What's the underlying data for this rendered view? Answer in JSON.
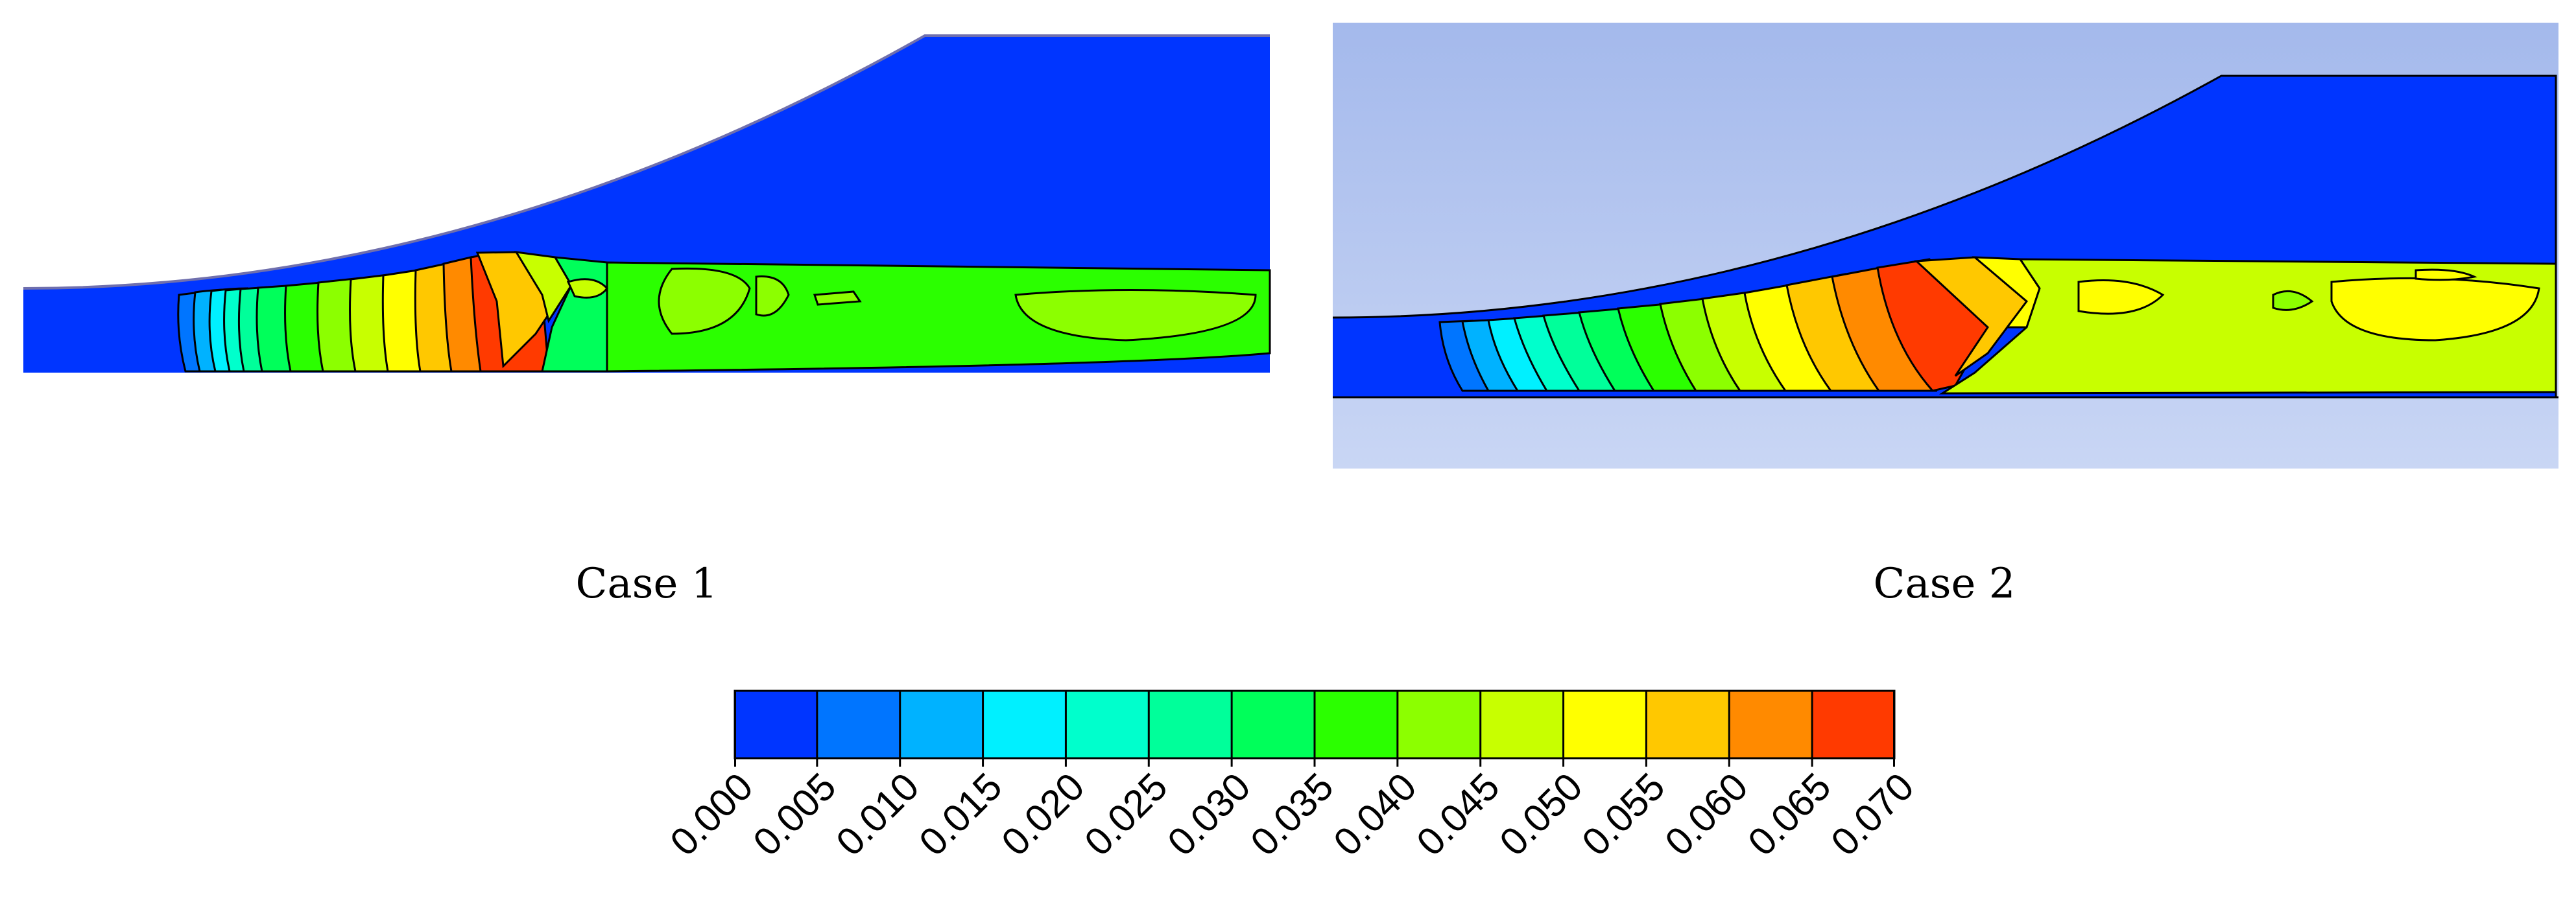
{
  "panels": [
    {
      "label": "Case 1"
    },
    {
      "label": "Case 2"
    }
  ],
  "colorbar": {
    "levels": [
      "0.000",
      "0.005",
      "0.010",
      "0.015",
      "0.020",
      "0.025",
      "0.030",
      "0.035",
      "0.040",
      "0.045",
      "0.050",
      "0.055",
      "0.060",
      "0.065",
      "0.070"
    ],
    "colors": [
      "#0035ff",
      "#0075ff",
      "#00b2ff",
      "#00f0ff",
      "#00ffcc",
      "#00ff9a",
      "#00ff5a",
      "#2bff00",
      "#8cff00",
      "#c8ff00",
      "#ffff00",
      "#ffc800",
      "#ff8a00",
      "#ff3a00"
    ]
  },
  "colors": {
    "background": "#ffffff",
    "case2_backdrop_top": "#a4b9ec",
    "case2_backdrop_bottom": "#c9d6f4"
  }
}
